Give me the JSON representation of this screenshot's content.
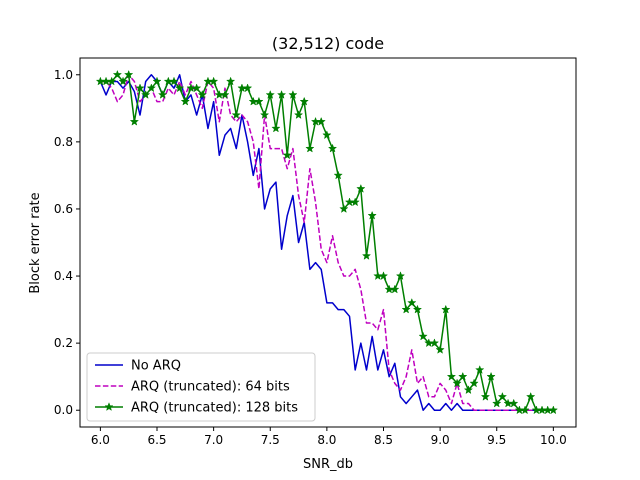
{
  "chart_data": {
    "type": "line",
    "title": "(32,512) code",
    "xlabel": "SNR_db",
    "ylabel": "Block error rate",
    "xlim": [
      5.82,
      10.2
    ],
    "ylim": [
      -0.05,
      1.05
    ],
    "xticks": [
      6.0,
      6.5,
      7.0,
      7.5,
      8.0,
      8.5,
      9.0,
      9.5,
      10.0
    ],
    "xtick_labels": [
      "6.0",
      "6.5",
      "7.0",
      "7.5",
      "8.0",
      "8.5",
      "9.0",
      "9.5",
      "10.0"
    ],
    "yticks": [
      0.0,
      0.2,
      0.4,
      0.6,
      0.8,
      1.0
    ],
    "ytick_labels": [
      "0.0",
      "0.2",
      "0.4",
      "0.6",
      "0.8",
      "1.0"
    ],
    "grid": false,
    "legend": "lower-left",
    "x": [
      6.0,
      6.05,
      6.1,
      6.15,
      6.2,
      6.25,
      6.3,
      6.35,
      6.4,
      6.45,
      6.5,
      6.55,
      6.6,
      6.65,
      6.7,
      6.75,
      6.8,
      6.85,
      6.9,
      6.95,
      7.0,
      7.05,
      7.1,
      7.15,
      7.2,
      7.25,
      7.3,
      7.35,
      7.4,
      7.45,
      7.5,
      7.55,
      7.6,
      7.65,
      7.7,
      7.75,
      7.8,
      7.85,
      7.9,
      7.95,
      8.0,
      8.05,
      8.1,
      8.15,
      8.2,
      8.25,
      8.3,
      8.35,
      8.4,
      8.45,
      8.5,
      8.55,
      8.6,
      8.65,
      8.7,
      8.75,
      8.8,
      8.85,
      8.9,
      8.95,
      9.0,
      9.05,
      9.1,
      9.15,
      9.2,
      9.25,
      9.3,
      9.35,
      9.4,
      9.45,
      9.5,
      9.55,
      9.6,
      9.65,
      9.7,
      9.75,
      9.8,
      9.85,
      9.9,
      9.95,
      10.0
    ],
    "series": [
      {
        "name": "No ARQ",
        "color": "#0000cc",
        "style": "solid",
        "marker": "none",
        "values": [
          0.98,
          0.94,
          0.98,
          0.98,
          0.96,
          0.98,
          0.95,
          0.88,
          0.98,
          1.0,
          0.98,
          0.94,
          0.98,
          0.96,
          1.0,
          0.92,
          0.94,
          0.88,
          0.94,
          0.84,
          0.92,
          0.76,
          0.82,
          0.84,
          0.78,
          0.88,
          0.8,
          0.7,
          0.78,
          0.6,
          0.66,
          0.68,
          0.48,
          0.58,
          0.64,
          0.5,
          0.56,
          0.42,
          0.44,
          0.42,
          0.32,
          0.32,
          0.3,
          0.3,
          0.28,
          0.12,
          0.2,
          0.12,
          0.22,
          0.12,
          0.18,
          0.1,
          0.14,
          0.04,
          0.02,
          0.04,
          0.06,
          0.0,
          0.02,
          0.0,
          0.0,
          0.02,
          0.0,
          0.02,
          0.0,
          0.0,
          0.0,
          0.0,
          0.0,
          0.0,
          0.0,
          0.0,
          0.0,
          0.0,
          0.0,
          0.0,
          0.0,
          0.0,
          0.0,
          0.0,
          0.0
        ]
      },
      {
        "name": "ARQ (truncated): 64 bits",
        "color": "#bf00bf",
        "style": "dashed",
        "marker": "none",
        "values": [
          0.98,
          0.98,
          0.96,
          0.92,
          0.94,
          1.0,
          0.98,
          0.92,
          0.94,
          0.96,
          0.92,
          0.92,
          0.96,
          0.94,
          0.98,
          0.94,
          0.98,
          0.94,
          0.9,
          0.98,
          0.96,
          0.86,
          0.96,
          0.88,
          0.86,
          0.88,
          0.86,
          0.8,
          0.66,
          0.88,
          0.78,
          0.78,
          0.78,
          0.72,
          0.78,
          0.64,
          0.56,
          0.72,
          0.62,
          0.48,
          0.44,
          0.52,
          0.44,
          0.4,
          0.4,
          0.42,
          0.36,
          0.26,
          0.26,
          0.24,
          0.3,
          0.12,
          0.08,
          0.06,
          0.1,
          0.18,
          0.08,
          0.1,
          0.04,
          0.04,
          0.08,
          0.06,
          0.02,
          0.08,
          0.02,
          0.02,
          0.0,
          0.0,
          0.0,
          0.0,
          0.0,
          0.0,
          0.0,
          0.0,
          0.0,
          0.0,
          0.0,
          0.0,
          0.0,
          0.0,
          0.0
        ]
      },
      {
        "name": "ARQ (truncated): 128 bits",
        "color": "#007f00",
        "style": "solid",
        "marker": "star",
        "values": [
          0.98,
          0.98,
          0.98,
          1.0,
          0.98,
          1.0,
          0.86,
          0.96,
          0.94,
          0.96,
          0.98,
          0.94,
          0.98,
          0.98,
          0.96,
          0.92,
          0.96,
          0.96,
          0.94,
          0.98,
          0.98,
          0.94,
          0.94,
          0.98,
          0.88,
          0.96,
          0.96,
          0.92,
          0.92,
          0.88,
          0.94,
          0.84,
          0.94,
          0.76,
          0.94,
          0.88,
          0.92,
          0.78,
          0.86,
          0.86,
          0.82,
          0.78,
          0.7,
          0.6,
          0.62,
          0.62,
          0.66,
          0.46,
          0.58,
          0.4,
          0.4,
          0.36,
          0.36,
          0.4,
          0.3,
          0.32,
          0.3,
          0.22,
          0.2,
          0.2,
          0.18,
          0.3,
          0.1,
          0.08,
          0.1,
          0.06,
          0.08,
          0.12,
          0.04,
          0.1,
          0.02,
          0.04,
          0.02,
          0.02,
          0.0,
          0.0,
          0.04,
          0.0,
          0.0,
          0.0,
          0.0
        ]
      }
    ]
  }
}
